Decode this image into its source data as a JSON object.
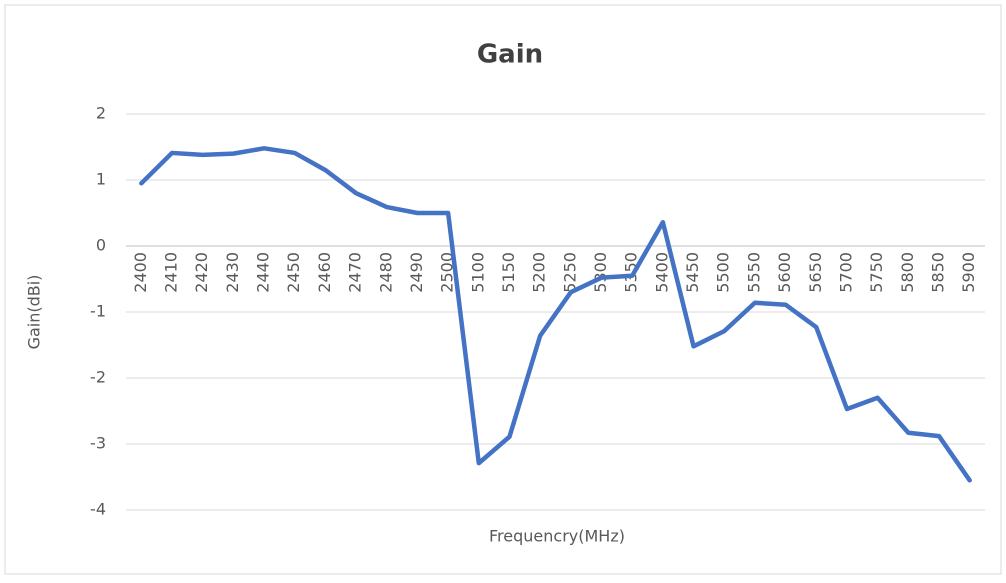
{
  "chart_data": {
    "type": "line",
    "title": "Gain",
    "x_label": "Frequencry(MHz)",
    "y_label": "Gain(dBi)",
    "categories": [
      "2400",
      "2410",
      "2420",
      "2430",
      "2440",
      "2450",
      "2460",
      "2470",
      "2480",
      "2490",
      "2500",
      "5100",
      "5150",
      "5200",
      "5250",
      "5300",
      "5350",
      "5400",
      "5450",
      "5500",
      "5550",
      "5600",
      "5650",
      "5700",
      "5750",
      "5800",
      "5850",
      "5900"
    ],
    "series": [
      {
        "name": "Gain",
        "color": "#4472c4",
        "values": [
          0.95,
          1.41,
          1.38,
          1.4,
          1.48,
          1.41,
          1.15,
          0.8,
          0.59,
          0.5,
          0.5,
          -3.29,
          -2.89,
          -1.36,
          -0.7,
          -0.48,
          -0.45,
          0.36,
          -1.52,
          -1.29,
          -0.86,
          -0.89,
          -1.23,
          -2.47,
          -2.3,
          -2.83,
          -2.88,
          -3.55
        ]
      }
    ],
    "ylim": [
      -4,
      2
    ],
    "yticks": [
      -4,
      -3,
      -2,
      -1,
      0,
      1,
      2
    ],
    "grid": true
  }
}
